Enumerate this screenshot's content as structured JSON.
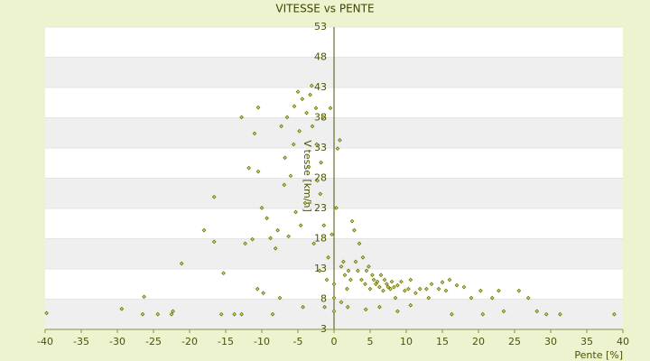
{
  "chart_data": {
    "type": "scatter",
    "title": "VITESSE vs PENTE",
    "x_label": "Pente [%]",
    "y_label": "Vitesse [km/h]",
    "color": "#6b7000",
    "grid": true,
    "xlim": [
      -40,
      40
    ],
    "xticks": [
      -40,
      -35,
      -30,
      -25,
      -20,
      -15,
      -10,
      -5,
      0,
      5,
      10,
      15,
      20,
      25,
      30,
      35,
      40
    ],
    "ylim": [
      3,
      53
    ],
    "yticks": [
      3,
      8,
      13,
      18,
      23,
      28,
      33,
      38,
      43,
      48,
      53
    ],
    "x": [
      -39.8,
      -29.4,
      -26.3,
      -26.5,
      -24.4,
      -22.5,
      -22.3,
      -21.1,
      -18.0,
      -16.6,
      -16.6,
      -15.3,
      -15.6,
      -13.8,
      -12.8,
      -12.8,
      -11.8,
      -12.3,
      -11.3,
      -10.6,
      -10.5,
      -11.0,
      -10.5,
      -10.0,
      -9.8,
      -9.3,
      -8.8,
      -8.5,
      -7.5,
      -8.1,
      -7.8,
      -7.3,
      -6.9,
      -6.8,
      -6.5,
      -6.3,
      -6.0,
      -5.6,
      -5.5,
      -5.3,
      -5.0,
      -4.8,
      -4.6,
      -4.4,
      -4.3,
      -4.0,
      -3.8,
      -3.5,
      -3.3,
      -3.1,
      -3.0,
      -2.8,
      -2.5,
      -2.4,
      -2.3,
      -2.0,
      -1.9,
      -1.8,
      -1.5,
      -1.4,
      -1.3,
      -1.0,
      -0.8,
      -0.5,
      -0.3,
      0,
      0,
      0,
      0.3,
      0.5,
      0.8,
      1.0,
      1.3,
      1.5,
      1.8,
      2.0,
      2.3,
      2.5,
      2.8,
      3.0,
      3.3,
      3.5,
      3.8,
      4.0,
      4.3,
      4.5,
      4.8,
      5.0,
      5.3,
      5.5,
      5.8,
      6.0,
      6.3,
      6.5,
      6.8,
      7.0,
      7.3,
      7.5,
      7.8,
      8.0,
      8.3,
      8.5,
      8.8,
      9.3,
      9.8,
      10.3,
      10.6,
      11.3,
      11.9,
      12.8,
      13.1,
      13.5,
      14.5,
      15.0,
      15.5,
      16.0,
      17.0,
      18.0,
      19.0,
      20.3,
      21.9,
      22.8,
      23.5,
      25.6,
      26.9,
      28.1,
      29.4,
      31.3,
      38.8,
      8.8,
      10.6,
      16.3,
      20.6,
      6.3,
      4.4,
      1.9,
      1.0
    ],
    "values": [
      5.7,
      6.4,
      8.4,
      5.5,
      5.5,
      5.5,
      6.0,
      13.9,
      19.4,
      24.9,
      17.5,
      12.3,
      5.5,
      5.5,
      5.5,
      38.1,
      29.7,
      17.2,
      17.9,
      9.7,
      39.7,
      35.4,
      29.1,
      23.1,
      9.0,
      21.4,
      18.1,
      5.5,
      8.2,
      16.4,
      19.4,
      36.6,
      26.9,
      31.4,
      38.1,
      18.4,
      28.4,
      33.6,
      39.9,
      22.4,
      42.3,
      35.8,
      20.2,
      41.1,
      6.7,
      23.9,
      38.8,
      29.9,
      41.8,
      43.3,
      36.6,
      17.2,
      39.6,
      33.6,
      27.6,
      12.7,
      25.4,
      30.6,
      38.1,
      20.2,
      6.7,
      11.2,
      14.9,
      39.6,
      18.7,
      6.0,
      8.2,
      10.5,
      23.1,
      32.9,
      34.3,
      13.4,
      14.2,
      12.0,
      9.7,
      12.7,
      11.2,
      20.9,
      19.4,
      14.2,
      12.7,
      17.2,
      11.2,
      14.9,
      10.5,
      12.7,
      13.4,
      9.7,
      12.0,
      11.2,
      10.5,
      10.9,
      10.0,
      12.0,
      9.4,
      11.2,
      10.5,
      10.0,
      9.7,
      10.9,
      10.0,
      8.2,
      10.3,
      10.9,
      9.4,
      9.7,
      11.2,
      9.0,
      9.7,
      9.7,
      8.2,
      10.5,
      9.7,
      10.8,
      9.4,
      11.2,
      10.3,
      10.0,
      8.2,
      9.4,
      8.2,
      9.4,
      6.0,
      9.4,
      8.2,
      6.0,
      5.5,
      5.5,
      5.5,
      6.0,
      7.0,
      5.5,
      5.5,
      6.7,
      6.3,
      6.7,
      7.5
    ]
  }
}
